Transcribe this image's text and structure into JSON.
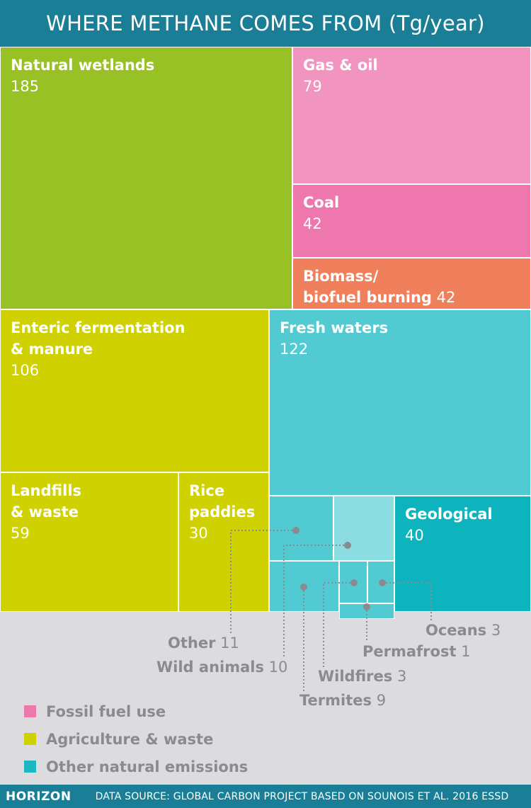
{
  "header": {
    "title": "WHERE METHANE COMES FROM (Tg/year)"
  },
  "chart_data": {
    "type": "treemap",
    "title": "WHERE METHANE COMES FROM (Tg/year)",
    "unit": "Tg/year",
    "items": [
      {
        "id": "natural-wetlands",
        "label": "Natural wetlands",
        "value": 185,
        "group": "Other natural emissions",
        "color": "#97c124"
      },
      {
        "id": "gas-oil",
        "label": "Gas & oil",
        "value": 79,
        "group": "Fossil fuel use",
        "color": "#f194bf"
      },
      {
        "id": "coal",
        "label": "Coal",
        "value": 42,
        "group": "Fossil fuel use",
        "color": "#ee78ad"
      },
      {
        "id": "biomass",
        "label": "Biomass/\nbiofuel burning",
        "value": 42,
        "group": "Other natural emissions",
        "color": "#f07f5c"
      },
      {
        "id": "enteric",
        "label": "Enteric fermentation\n& manure",
        "value": 106,
        "group": "Agriculture & waste",
        "color": "#cfd100"
      },
      {
        "id": "fresh-waters",
        "label": "Fresh waters",
        "value": 122,
        "group": "Other natural emissions",
        "color": "#52cad1"
      },
      {
        "id": "landfills",
        "label": "Landfills\n& waste",
        "value": 59,
        "group": "Agriculture & waste",
        "color": "#cfd100"
      },
      {
        "id": "rice",
        "label": "Rice\npaddies",
        "value": 30,
        "group": "Agriculture & waste",
        "color": "#cfd100"
      },
      {
        "id": "geological",
        "label": "Geological",
        "value": 40,
        "group": "Other natural emissions",
        "color": "#0db4be"
      },
      {
        "id": "other",
        "label": "Other",
        "value": 11,
        "group": "Other natural emissions",
        "color": "#52cad1"
      },
      {
        "id": "wild-animals",
        "label": "Wild animals",
        "value": 10,
        "group": "Other natural emissions",
        "color": "#8bdde2"
      },
      {
        "id": "termites",
        "label": "Termites",
        "value": 9,
        "group": "Other natural emissions",
        "color": "#52cad1"
      },
      {
        "id": "wildfires",
        "label": "Wildfires",
        "value": 3,
        "group": "Other natural emissions",
        "color": "#52cad1"
      },
      {
        "id": "oceans",
        "label": "Oceans",
        "value": 3,
        "group": "Other natural emissions",
        "color": "#52cad1"
      },
      {
        "id": "permafrost",
        "label": "Permafrost",
        "value": 1,
        "group": "Other natural emissions",
        "color": "#52cad1"
      }
    ],
    "legend": [
      {
        "label": "Fossil fuel use",
        "color": "#ee78ad"
      },
      {
        "label": "Agriculture & waste",
        "color": "#cfd100"
      },
      {
        "label": "Other natural emissions",
        "color": "#1bb8c2"
      }
    ],
    "legend_position": "bottom-left",
    "leader_color": "#8a8a93"
  },
  "footer": {
    "brand": "HORIZON",
    "source": "DATA SOURCE: GLOBAL CARBON PROJECT BASED ON SOUNOIS ET AL. 2016 ESSD"
  }
}
